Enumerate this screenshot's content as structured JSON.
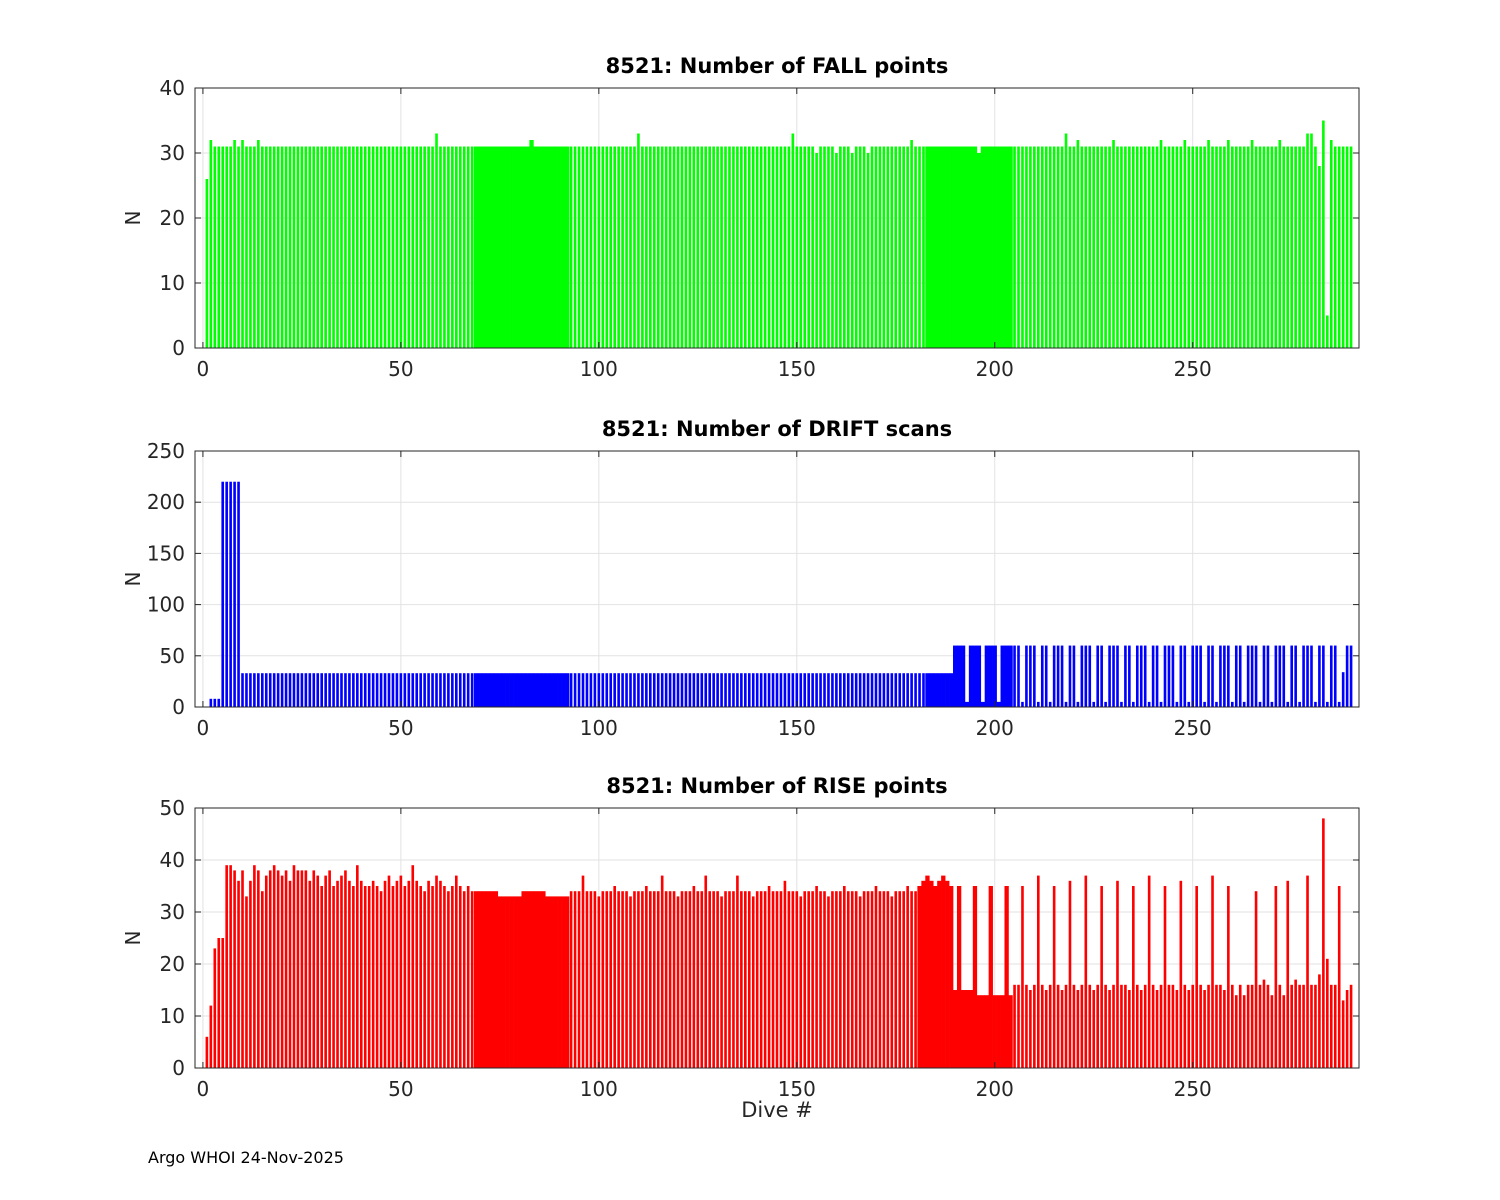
{
  "figure": {
    "background": "#ffffff"
  },
  "footer": {
    "text": "Argo WHOI 24-Nov-2025"
  },
  "xlabel": "Dive #",
  "colors": {
    "fall": "#00ff00",
    "drift": "#0000ff",
    "rise": "#ff0000",
    "axis": "#262626",
    "grid": "#e2e2e2"
  },
  "chart_data": [
    {
      "id": "fall",
      "type": "bar",
      "title": "8521: Number of FALL points",
      "ylabel": "N",
      "xlabel": "",
      "color": "#00ff00",
      "n_dives": 290,
      "xlim": [
        -2,
        292
      ],
      "ylim": [
        0,
        40
      ],
      "xticks": [
        0,
        50,
        100,
        150,
        200,
        250
      ],
      "yticks": [
        0,
        10,
        20,
        30,
        40
      ],
      "grid": true,
      "base_value": 31,
      "value_runs": [
        [
          1,
          1,
          26
        ],
        [
          2,
          2,
          32
        ],
        [
          8,
          8,
          32
        ],
        [
          10,
          10,
          32
        ],
        [
          14,
          14,
          32
        ],
        [
          59,
          59,
          33
        ],
        [
          83,
          83,
          32
        ],
        [
          110,
          110,
          33
        ],
        [
          149,
          149,
          33
        ],
        [
          155,
          155,
          30
        ],
        [
          160,
          160,
          30
        ],
        [
          164,
          164,
          30
        ],
        [
          168,
          168,
          30
        ],
        [
          179,
          179,
          32
        ],
        [
          196,
          196,
          30
        ],
        [
          218,
          218,
          33
        ],
        [
          221,
          221,
          32
        ],
        [
          230,
          230,
          32
        ],
        [
          242,
          242,
          32
        ],
        [
          248,
          248,
          32
        ],
        [
          254,
          254,
          32
        ],
        [
          259,
          259,
          32
        ],
        [
          265,
          265,
          32
        ],
        [
          272,
          272,
          32
        ],
        [
          279,
          279,
          33
        ],
        [
          280,
          280,
          33
        ],
        [
          282,
          282,
          28
        ],
        [
          283,
          283,
          35
        ],
        [
          284,
          284,
          5
        ],
        [
          285,
          285,
          32
        ]
      ],
      "solid_ranges": [
        [
          69,
          92
        ],
        [
          183,
          204
        ]
      ]
    },
    {
      "id": "drift",
      "type": "bar",
      "title": "8521: Number of DRIFT scans",
      "ylabel": "N",
      "xlabel": "",
      "color": "#0000ff",
      "n_dives": 290,
      "xlim": [
        -2,
        292
      ],
      "ylim": [
        0,
        250
      ],
      "xticks": [
        0,
        50,
        100,
        150,
        200,
        250
      ],
      "yticks": [
        0,
        50,
        100,
        150,
        200,
        250
      ],
      "grid": true,
      "base_value": 33,
      "value_runs": [
        [
          1,
          1,
          0
        ],
        [
          2,
          4,
          8
        ],
        [
          5,
          9,
          220
        ],
        [
          190,
          192,
          60
        ],
        [
          193,
          193,
          5
        ],
        [
          194,
          196,
          60
        ],
        [
          197,
          197,
          5
        ],
        [
          198,
          200,
          60
        ],
        [
          201,
          201,
          5
        ],
        [
          202,
          204,
          60
        ],
        [
          205,
          290,
          60
        ],
        [
          207,
          207,
          5
        ],
        [
          211,
          211,
          5
        ],
        [
          214,
          214,
          5
        ],
        [
          218,
          218,
          5
        ],
        [
          221,
          221,
          5
        ],
        [
          225,
          225,
          5
        ],
        [
          228,
          228,
          5
        ],
        [
          232,
          232,
          5
        ],
        [
          235,
          235,
          5
        ],
        [
          239,
          239,
          5
        ],
        [
          242,
          242,
          5
        ],
        [
          246,
          246,
          5
        ],
        [
          249,
          249,
          5
        ],
        [
          253,
          253,
          5
        ],
        [
          256,
          256,
          5
        ],
        [
          260,
          260,
          5
        ],
        [
          263,
          263,
          5
        ],
        [
          267,
          267,
          5
        ],
        [
          270,
          270,
          5
        ],
        [
          274,
          274,
          5
        ],
        [
          277,
          277,
          5
        ],
        [
          281,
          281,
          5
        ],
        [
          284,
          284,
          5
        ],
        [
          287,
          287,
          5
        ],
        [
          288,
          288,
          34
        ]
      ],
      "solid_ranges": [
        [
          69,
          92
        ],
        [
          183,
          204
        ]
      ]
    },
    {
      "id": "rise",
      "type": "bar",
      "title": "8521: Number of RISE points",
      "ylabel": "N",
      "xlabel": "Dive #",
      "color": "#ff0000",
      "n_dives": 290,
      "xlim": [
        -2,
        292
      ],
      "ylim": [
        0,
        50
      ],
      "xticks": [
        0,
        50,
        100,
        150,
        200,
        250
      ],
      "yticks": [
        0,
        10,
        20,
        30,
        40,
        50
      ],
      "grid": true,
      "base_value": 34,
      "value_runs": [
        [
          1,
          1,
          6
        ],
        [
          2,
          2,
          12
        ],
        [
          3,
          3,
          23
        ],
        [
          4,
          5,
          25
        ],
        [
          6,
          7,
          39
        ],
        [
          8,
          8,
          38
        ],
        [
          9,
          9,
          36
        ],
        [
          10,
          10,
          38
        ],
        [
          11,
          11,
          33
        ],
        [
          12,
          12,
          36
        ],
        [
          13,
          13,
          39
        ],
        [
          14,
          14,
          38
        ],
        [
          16,
          16,
          37
        ],
        [
          17,
          17,
          38
        ],
        [
          18,
          18,
          39
        ],
        [
          19,
          19,
          38
        ],
        [
          20,
          20,
          37
        ],
        [
          21,
          21,
          38
        ],
        [
          22,
          22,
          36
        ],
        [
          23,
          23,
          39
        ],
        [
          24,
          26,
          38
        ],
        [
          27,
          27,
          36
        ],
        [
          28,
          28,
          38
        ],
        [
          29,
          29,
          37
        ],
        [
          30,
          30,
          35
        ],
        [
          31,
          31,
          37
        ],
        [
          32,
          32,
          38
        ],
        [
          33,
          33,
          35
        ],
        [
          34,
          34,
          36
        ],
        [
          35,
          35,
          37
        ],
        [
          36,
          36,
          38
        ],
        [
          37,
          37,
          36
        ],
        [
          38,
          38,
          35
        ],
        [
          39,
          39,
          39
        ],
        [
          40,
          40,
          36
        ],
        [
          41,
          42,
          35
        ],
        [
          43,
          43,
          36
        ],
        [
          44,
          44,
          35
        ],
        [
          46,
          46,
          36
        ],
        [
          47,
          47,
          37
        ],
        [
          48,
          48,
          35
        ],
        [
          49,
          49,
          36
        ],
        [
          50,
          50,
          37
        ],
        [
          51,
          51,
          35
        ],
        [
          52,
          52,
          36
        ],
        [
          53,
          53,
          39
        ],
        [
          54,
          54,
          36
        ],
        [
          55,
          55,
          35
        ],
        [
          57,
          57,
          36
        ],
        [
          58,
          58,
          35
        ],
        [
          59,
          59,
          37
        ],
        [
          60,
          60,
          36
        ],
        [
          61,
          61,
          35
        ],
        [
          63,
          63,
          35
        ],
        [
          64,
          64,
          37
        ],
        [
          65,
          65,
          35
        ],
        [
          67,
          67,
          35
        ],
        [
          69,
          74,
          34
        ],
        [
          75,
          80,
          33
        ],
        [
          81,
          86,
          34
        ],
        [
          87,
          92,
          33
        ],
        [
          96,
          96,
          37
        ],
        [
          100,
          100,
          33
        ],
        [
          104,
          104,
          35
        ],
        [
          108,
          108,
          33
        ],
        [
          112,
          112,
          35
        ],
        [
          116,
          116,
          37
        ],
        [
          120,
          120,
          33
        ],
        [
          124,
          124,
          35
        ],
        [
          127,
          127,
          37
        ],
        [
          131,
          131,
          33
        ],
        [
          135,
          135,
          37
        ],
        [
          139,
          139,
          33
        ],
        [
          143,
          143,
          35
        ],
        [
          147,
          147,
          36
        ],
        [
          151,
          151,
          33
        ],
        [
          155,
          155,
          35
        ],
        [
          158,
          158,
          33
        ],
        [
          162,
          162,
          35
        ],
        [
          166,
          166,
          33
        ],
        [
          170,
          170,
          35
        ],
        [
          174,
          174,
          33
        ],
        [
          178,
          178,
          35
        ],
        [
          181,
          181,
          35
        ],
        [
          182,
          182,
          36
        ],
        [
          183,
          183,
          37
        ],
        [
          184,
          184,
          36
        ],
        [
          185,
          185,
          35
        ],
        [
          186,
          186,
          36
        ],
        [
          187,
          187,
          37
        ],
        [
          188,
          188,
          36
        ],
        [
          189,
          189,
          35
        ],
        [
          190,
          190,
          15
        ],
        [
          191,
          191,
          35
        ],
        [
          192,
          194,
          15
        ],
        [
          195,
          195,
          35
        ],
        [
          196,
          198,
          14
        ],
        [
          199,
          199,
          35
        ],
        [
          200,
          202,
          14
        ],
        [
          203,
          203,
          35
        ],
        [
          204,
          204,
          14
        ],
        [
          205,
          290,
          16
        ],
        [
          207,
          207,
          35
        ],
        [
          209,
          209,
          15
        ],
        [
          211,
          211,
          37
        ],
        [
          213,
          213,
          15
        ],
        [
          215,
          215,
          35
        ],
        [
          217,
          217,
          15
        ],
        [
          219,
          219,
          36
        ],
        [
          221,
          221,
          15
        ],
        [
          223,
          223,
          37
        ],
        [
          225,
          225,
          15
        ],
        [
          227,
          227,
          35
        ],
        [
          229,
          229,
          15
        ],
        [
          231,
          231,
          36
        ],
        [
          234,
          234,
          15
        ],
        [
          235,
          235,
          35
        ],
        [
          237,
          237,
          15
        ],
        [
          239,
          239,
          37
        ],
        [
          241,
          241,
          15
        ],
        [
          243,
          243,
          35
        ],
        [
          246,
          246,
          15
        ],
        [
          247,
          247,
          36
        ],
        [
          249,
          249,
          15
        ],
        [
          251,
          251,
          35
        ],
        [
          253,
          253,
          15
        ],
        [
          255,
          255,
          37
        ],
        [
          258,
          258,
          15
        ],
        [
          259,
          259,
          35
        ],
        [
          261,
          261,
          14
        ],
        [
          263,
          263,
          14
        ],
        [
          266,
          266,
          34
        ],
        [
          268,
          268,
          17
        ],
        [
          270,
          270,
          14
        ],
        [
          271,
          271,
          35
        ],
        [
          273,
          273,
          14
        ],
        [
          274,
          274,
          36
        ],
        [
          276,
          276,
          17
        ],
        [
          279,
          279,
          37
        ],
        [
          282,
          282,
          18
        ],
        [
          283,
          283,
          48
        ],
        [
          284,
          284,
          21
        ],
        [
          287,
          287,
          35
        ],
        [
          288,
          288,
          13
        ],
        [
          289,
          289,
          15
        ]
      ],
      "solid_ranges": [
        [
          69,
          92
        ],
        [
          181,
          189
        ],
        [
          190,
          204
        ]
      ]
    }
  ]
}
